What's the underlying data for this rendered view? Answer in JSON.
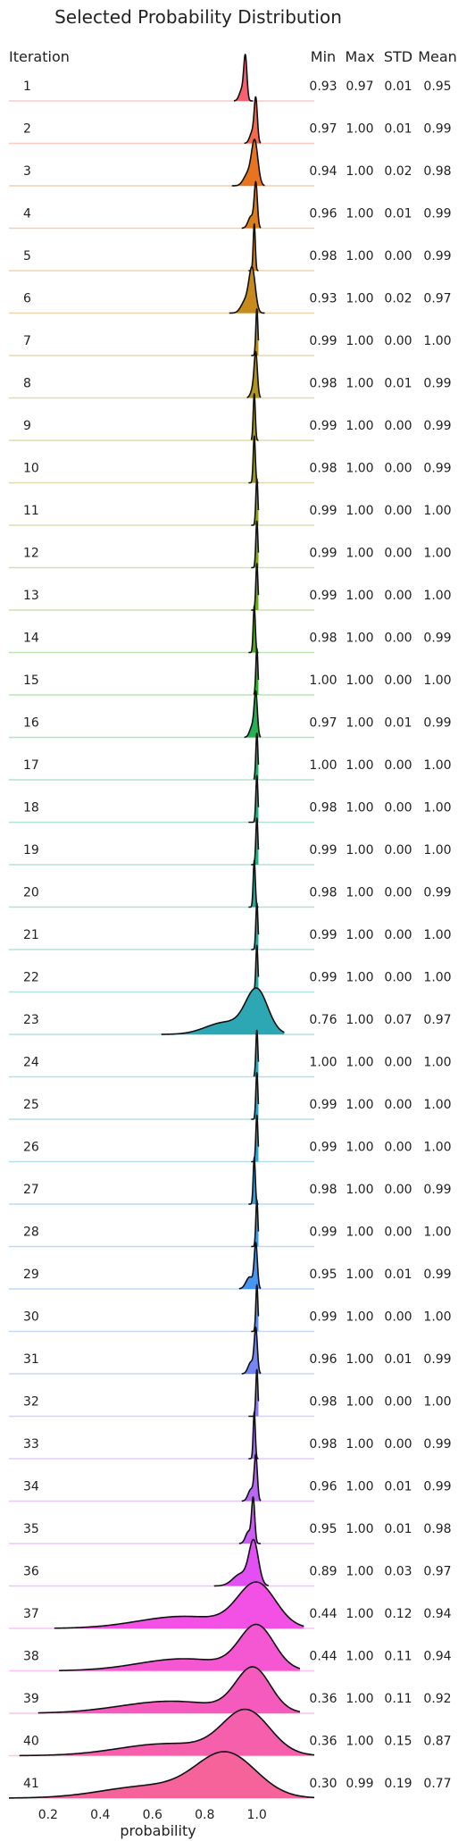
{
  "chart_data": {
    "type": "ridgeline",
    "title": "Selected Probability Distribution",
    "xlabel": "probability",
    "row_header": "Iteration",
    "stat_headers": [
      "Min",
      "Max",
      "STD",
      "Mean"
    ],
    "xlim": [
      0.05,
      1.22
    ],
    "x_ticks": [
      "0.2",
      "0.4",
      "0.6",
      "0.8",
      "1.0"
    ],
    "x_tick_values": [
      0.2,
      0.4,
      0.6,
      0.8,
      1.0
    ],
    "grid": false,
    "rows": [
      {
        "iteration": "1",
        "min": "0.93",
        "max": "0.97",
        "std": "0.01",
        "mean": "0.95",
        "color": "#f7616f"
      },
      {
        "iteration": "2",
        "min": "0.97",
        "max": "1.00",
        "std": "0.01",
        "mean": "0.99",
        "color": "#f46a4d"
      },
      {
        "iteration": "3",
        "min": "0.94",
        "max": "1.00",
        "std": "0.02",
        "mean": "0.98",
        "color": "#e8741f"
      },
      {
        "iteration": "4",
        "min": "0.96",
        "max": "1.00",
        "std": "0.01",
        "mean": "0.99",
        "color": "#dc7d1c"
      },
      {
        "iteration": "5",
        "min": "0.98",
        "max": "1.00",
        "std": "0.00",
        "mean": "0.99",
        "color": "#d1841c"
      },
      {
        "iteration": "6",
        "min": "0.93",
        "max": "1.00",
        "std": "0.02",
        "mean": "0.97",
        "color": "#c68a1d"
      },
      {
        "iteration": "7",
        "min": "0.99",
        "max": "1.00",
        "std": "0.00",
        "mean": "1.00",
        "color": "#bc8f1d"
      },
      {
        "iteration": "8",
        "min": "0.98",
        "max": "1.00",
        "std": "0.01",
        "mean": "0.99",
        "color": "#b1941d"
      },
      {
        "iteration": "9",
        "min": "0.99",
        "max": "1.00",
        "std": "0.00",
        "mean": "0.99",
        "color": "#a7981d"
      },
      {
        "iteration": "10",
        "min": "0.98",
        "max": "1.00",
        "std": "0.00",
        "mean": "0.99",
        "color": "#9c9c1e"
      },
      {
        "iteration": "11",
        "min": "0.99",
        "max": "1.00",
        "std": "0.00",
        "mean": "1.00",
        "color": "#8fa11e"
      },
      {
        "iteration": "12",
        "min": "0.99",
        "max": "1.00",
        "std": "0.00",
        "mean": "1.00",
        "color": "#80a51e"
      },
      {
        "iteration": "13",
        "min": "0.99",
        "max": "1.00",
        "std": "0.00",
        "mean": "1.00",
        "color": "#6da91f"
      },
      {
        "iteration": "14",
        "min": "0.98",
        "max": "1.00",
        "std": "0.00",
        "mean": "0.99",
        "color": "#53ad20"
      },
      {
        "iteration": "15",
        "min": "1.00",
        "max": "1.00",
        "std": "0.00",
        "mean": "1.00",
        "color": "#2fb12b"
      },
      {
        "iteration": "16",
        "min": "0.97",
        "max": "1.00",
        "std": "0.01",
        "mean": "0.99",
        "color": "#26b04f"
      },
      {
        "iteration": "17",
        "min": "1.00",
        "max": "1.00",
        "std": "0.00",
        "mean": "1.00",
        "color": "#27ae68"
      },
      {
        "iteration": "18",
        "min": "0.98",
        "max": "1.00",
        "std": "0.00",
        "mean": "1.00",
        "color": "#28ad7a"
      },
      {
        "iteration": "19",
        "min": "0.99",
        "max": "1.00",
        "std": "0.00",
        "mean": "1.00",
        "color": "#29ab88"
      },
      {
        "iteration": "20",
        "min": "0.98",
        "max": "1.00",
        "std": "0.00",
        "mean": "0.99",
        "color": "#2aaa94"
      },
      {
        "iteration": "21",
        "min": "0.99",
        "max": "1.00",
        "std": "0.00",
        "mean": "1.00",
        "color": "#2ba99f"
      },
      {
        "iteration": "22",
        "min": "0.99",
        "max": "1.00",
        "std": "0.00",
        "mean": "1.00",
        "color": "#2ba8a9"
      },
      {
        "iteration": "23",
        "min": "0.76",
        "max": "1.00",
        "std": "0.07",
        "mean": "0.97",
        "color": "#2ca7b3"
      },
      {
        "iteration": "24",
        "min": "1.00",
        "max": "1.00",
        "std": "0.00",
        "mean": "1.00",
        "color": "#2da6bc"
      },
      {
        "iteration": "25",
        "min": "0.99",
        "max": "1.00",
        "std": "0.00",
        "mean": "1.00",
        "color": "#2ea5c6"
      },
      {
        "iteration": "26",
        "min": "0.99",
        "max": "1.00",
        "std": "0.00",
        "mean": "1.00",
        "color": "#30a3d1"
      },
      {
        "iteration": "27",
        "min": "0.98",
        "max": "1.00",
        "std": "0.00",
        "mean": "0.99",
        "color": "#33a0de"
      },
      {
        "iteration": "28",
        "min": "0.99",
        "max": "1.00",
        "std": "0.00",
        "mean": "1.00",
        "color": "#3a9cee"
      },
      {
        "iteration": "29",
        "min": "0.95",
        "max": "1.00",
        "std": "0.01",
        "mean": "0.99",
        "color": "#4896f4"
      },
      {
        "iteration": "30",
        "min": "0.99",
        "max": "1.00",
        "std": "0.00",
        "mean": "1.00",
        "color": "#5e8ef5"
      },
      {
        "iteration": "31",
        "min": "0.96",
        "max": "1.00",
        "std": "0.01",
        "mean": "0.99",
        "color": "#7685f4"
      },
      {
        "iteration": "32",
        "min": "0.98",
        "max": "1.00",
        "std": "0.00",
        "mean": "1.00",
        "color": "#8c7cf4"
      },
      {
        "iteration": "33",
        "min": "0.98",
        "max": "1.00",
        "std": "0.00",
        "mean": "0.99",
        "color": "#a272f4"
      },
      {
        "iteration": "34",
        "min": "0.96",
        "max": "1.00",
        "std": "0.01",
        "mean": "0.99",
        "color": "#b867f4"
      },
      {
        "iteration": "35",
        "min": "0.95",
        "max": "1.00",
        "std": "0.01",
        "mean": "0.98",
        "color": "#cd5cf4"
      },
      {
        "iteration": "36",
        "min": "0.89",
        "max": "1.00",
        "std": "0.03",
        "mean": "0.97",
        "color": "#e24ff2"
      },
      {
        "iteration": "37",
        "min": "0.44",
        "max": "1.00",
        "std": "0.12",
        "mean": "0.94",
        "color": "#f350e6"
      },
      {
        "iteration": "38",
        "min": "0.44",
        "max": "1.00",
        "std": "0.11",
        "mean": "0.94",
        "color": "#f556d1"
      },
      {
        "iteration": "39",
        "min": "0.36",
        "max": "1.00",
        "std": "0.11",
        "mean": "0.92",
        "color": "#f55bbd"
      },
      {
        "iteration": "40",
        "min": "0.36",
        "max": "1.00",
        "std": "0.15",
        "mean": "0.87",
        "color": "#f55fab"
      },
      {
        "iteration": "41",
        "min": "0.30",
        "max": "0.99",
        "std": "0.19",
        "mean": "0.77",
        "color": "#f5639a"
      }
    ]
  }
}
